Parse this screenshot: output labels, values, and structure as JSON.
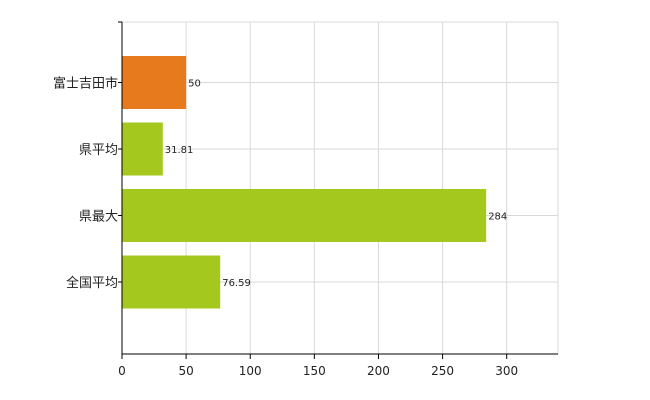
{
  "chart_data": {
    "type": "bar",
    "orientation": "horizontal",
    "categories": [
      "富士吉田市",
      "県平均",
      "県最大",
      "全国平均"
    ],
    "values": [
      50,
      31.81,
      284,
      76.59
    ],
    "value_labels": [
      "50",
      "31.81",
      "284",
      "76.59"
    ],
    "colors": [
      "#e87a1e",
      "#a5c81e",
      "#a5c81e",
      "#a5c81e"
    ],
    "highlight_color": "#e87a1e",
    "default_color": "#a5c81e",
    "xlim": [
      0,
      340
    ],
    "x_ticks": [
      0,
      50,
      100,
      150,
      200,
      250,
      300
    ],
    "x_tick_labels": [
      "0",
      "50",
      "100",
      "150",
      "200",
      "250",
      "300"
    ],
    "grid": true,
    "grid_color": "#d9d9d9",
    "title": "",
    "xlabel": "",
    "ylabel": ""
  }
}
